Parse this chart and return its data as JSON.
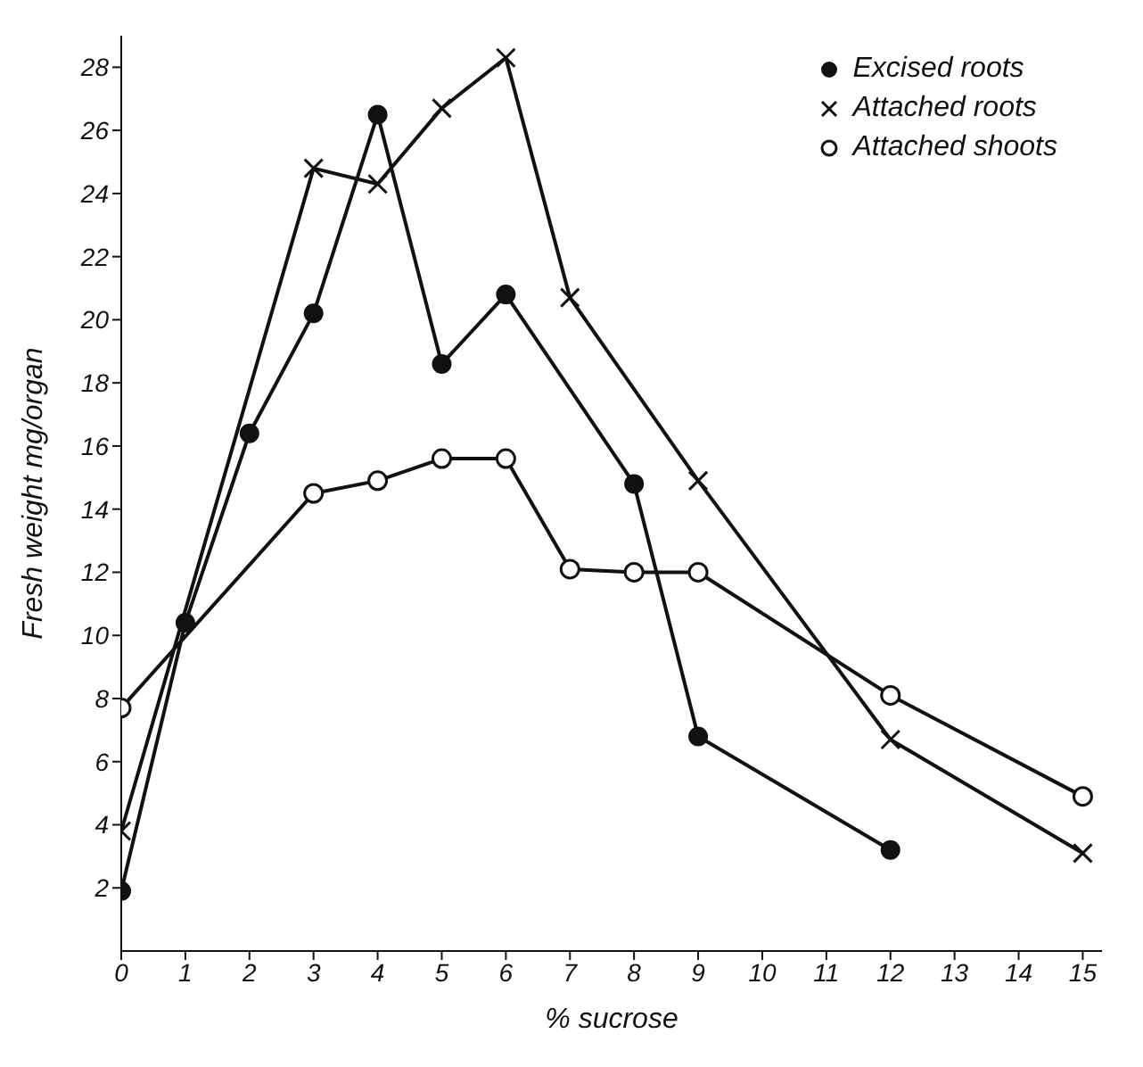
{
  "chart_data": {
    "type": "line",
    "xlabel": "% sucrose",
    "ylabel": "Fresh weight mg/organ",
    "xlim": [
      0,
      15.3
    ],
    "xticks": [
      0,
      1,
      2,
      3,
      4,
      5,
      6,
      7,
      8,
      9,
      10,
      11,
      12,
      13,
      14,
      15
    ],
    "ylim": [
      0,
      29
    ],
    "yticks": [
      2,
      4,
      6,
      8,
      10,
      12,
      14,
      16,
      18,
      20,
      22,
      24,
      26,
      28
    ],
    "grid": false,
    "legend": "top right",
    "line_style": "solid",
    "series": [
      {
        "name": "Excised roots",
        "color": "#111111",
        "marker": "circle",
        "x": [
          0,
          1,
          2,
          3,
          4,
          5,
          6,
          8,
          9,
          12
        ],
        "values": [
          1.9,
          10.4,
          16.4,
          20.2,
          26.5,
          18.6,
          20.8,
          14.8,
          6.8,
          3.2
        ]
      },
      {
        "name": "Attached roots",
        "color": "#111111",
        "marker": "cross",
        "x": [
          0,
          3,
          4,
          5,
          6,
          7,
          9,
          12,
          15
        ],
        "values": [
          3.8,
          24.8,
          24.3,
          26.7,
          28.3,
          20.7,
          14.9,
          6.7,
          3.1
        ]
      },
      {
        "name": "Attached shoots",
        "color": "#111111",
        "marker": "circle-open",
        "x": [
          0,
          3,
          4,
          5,
          6,
          7,
          8,
          9,
          12,
          15
        ],
        "values": [
          7.7,
          14.5,
          14.9,
          15.6,
          15.6,
          12.1,
          12.0,
          12.0,
          8.1,
          4.9
        ]
      }
    ]
  }
}
